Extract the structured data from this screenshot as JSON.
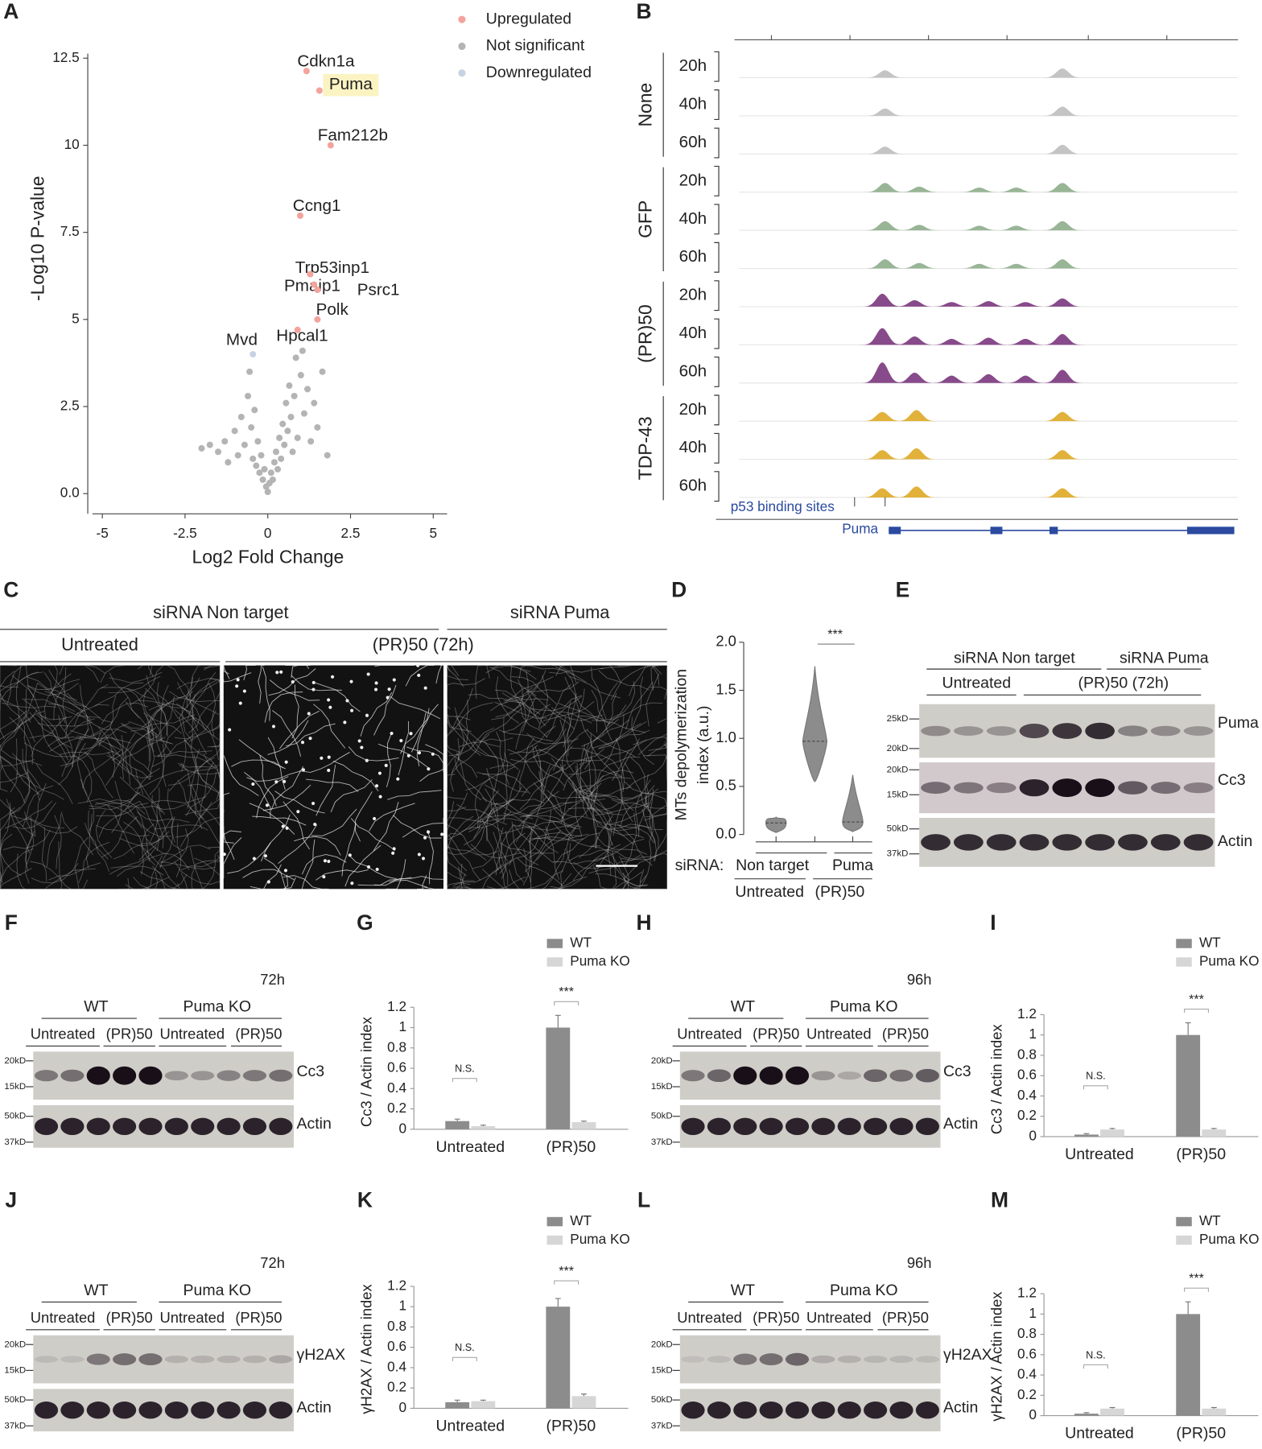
{
  "panel_labels": [
    "A",
    "B",
    "C",
    "D",
    "E",
    "F",
    "G",
    "H",
    "I",
    "J",
    "K",
    "L",
    "M"
  ],
  "chart_data": [
    {
      "type": "scatter",
      "xlabel": "Log2 Fold Change",
      "ylabel": "-Log10 P-value",
      "xlim": [
        -5.3,
        5.42
      ],
      "ylim": [
        -0.58,
        12.63
      ],
      "xticks": [
        -5,
        -2.5,
        0,
        2.5,
        5
      ],
      "yticks": [
        {
          "value": 0,
          "label": "0.0"
        },
        2.5,
        5,
        7.5,
        10,
        12.5
      ],
      "series": [
        {
          "name": "Upregulated",
          "color": "#f2a49c",
          "x": [
            1.17,
            1.56,
            1.9,
            0.98,
            1.28,
            1.4,
            1.5,
            1.5,
            0.9
          ],
          "values": [
            12.13,
            11.57,
            10.0,
            7.98,
            6.3,
            6.0,
            5.85,
            5.0,
            4.7
          ],
          "point_labels": [
            "Cdkn1a",
            "Puma",
            "Fam212b",
            "Ccng1",
            "Trp53inp1",
            "Pmaip1",
            "Psrc1",
            "Polk",
            "Hpcal1"
          ]
        },
        {
          "name": "Not significant",
          "color": "#b4b4b4",
          "x": [
            -1.5,
            -1.3,
            -1.2,
            -1.0,
            -0.9,
            -0.8,
            -0.7,
            -0.6,
            -0.55,
            -0.5,
            -0.45,
            -0.4,
            -0.35,
            -0.3,
            -0.25,
            -0.2,
            -0.15,
            -0.1,
            -0.05,
            0,
            0.05,
            0.1,
            0.15,
            0.2,
            0.25,
            0.3,
            0.35,
            0.4,
            0.45,
            0.5,
            0.55,
            0.6,
            0.65,
            0.7,
            0.75,
            0.8,
            0.85,
            0.9,
            1.0,
            1.05,
            1.1,
            1.2,
            1.3,
            1.4,
            1.5,
            1.65,
            1.8,
            -1.75,
            -2.0
          ],
          "values": [
            1.2,
            1.5,
            0.9,
            1.8,
            1.1,
            2.2,
            1.4,
            2.8,
            3.5,
            1.9,
            1.0,
            2.4,
            0.8,
            1.5,
            0.6,
            1.1,
            0.4,
            0.7,
            0.2,
            0.05,
            0.3,
            0.6,
            0.4,
            0.9,
            1.2,
            0.7,
            1.6,
            1.0,
            2.0,
            1.4,
            2.6,
            1.8,
            3.1,
            2.2,
            1.2,
            2.8,
            3.9,
            1.6,
            3.4,
            4.1,
            2.3,
            3.0,
            1.5,
            2.6,
            1.9,
            3.5,
            1.1,
            1.4,
            1.3
          ]
        },
        {
          "name": "Downregulated",
          "color": "#c6d4e2",
          "x": [
            -0.45
          ],
          "values": [
            4.0
          ],
          "point_labels": [
            "Mvd"
          ]
        }
      ]
    },
    {
      "type": "violin",
      "ylabel": [
        "MTs depolymerization",
        "index (a.u.)"
      ],
      "ylim": [
        0,
        2.0
      ],
      "yticks": [
        {
          "value": 0,
          "label": "0.0"
        },
        {
          "value": 0.5,
          "label": "0.5"
        },
        {
          "value": 1,
          "label": "1.0"
        },
        {
          "value": 1.5,
          "label": "1.5"
        },
        {
          "value": 2,
          "label": "2.0"
        }
      ],
      "categories": [
        null,
        null,
        null
      ],
      "color": "#8c8c8c",
      "medians": [
        0.12,
        0.97,
        0.13
      ],
      "mins": [
        0.02,
        0.55,
        0.03
      ],
      "maxs": [
        0.18,
        1.75,
        0.62
      ],
      "x_labels": [
        "siRNA:",
        "Non target",
        "Puma",
        "Untreated",
        "(PR)50"
      ],
      "annotations": [
        "***"
      ]
    },
    {
      "type": "bar",
      "ylabel": "Cc3 / Actin index",
      "categories": [
        "Untreated",
        "(PR)50"
      ],
      "ylim": [
        0,
        1.2
      ],
      "yticks": [
        0,
        0.2,
        0.4,
        0.6,
        0.8,
        1,
        1.2
      ],
      "series": [
        {
          "name": "WT",
          "color": "#8c8c8c",
          "values": [
            0.08,
            1.0
          ],
          "errors": [
            0.02,
            0.12
          ]
        },
        {
          "name": "Puma KO",
          "color": "#d6d6d6",
          "values": [
            0.03,
            0.07
          ],
          "errors": [
            0.01,
            0.01
          ]
        }
      ],
      "annotations": [
        "N.S.",
        "***"
      ]
    },
    {
      "type": "bar",
      "ylabel": "Cc3 / Actin index",
      "categories": [
        "Untreated",
        "(PR)50"
      ],
      "ylim": [
        0,
        1.2
      ],
      "yticks": [
        0,
        0.2,
        0.4,
        0.6,
        0.8,
        1,
        1.2
      ],
      "series": [
        {
          "name": "WT",
          "color": "#8c8c8c",
          "values": [
            0.02,
            1.0
          ],
          "errors": [
            0.01,
            0.12
          ]
        },
        {
          "name": "Puma KO",
          "color": "#d6d6d6",
          "values": [
            0.07,
            0.07
          ],
          "errors": [
            0.01,
            0.01
          ]
        }
      ],
      "annotations": [
        "N.S.",
        "***"
      ]
    },
    {
      "type": "bar",
      "ylabel": "γH2AX / Actin index",
      "categories": [
        "Untreated",
        "(PR)50"
      ],
      "ylim": [
        0,
        1.2
      ],
      "yticks": [
        0,
        0.2,
        0.4,
        0.6,
        0.8,
        1,
        1.2
      ],
      "series": [
        {
          "name": "WT",
          "color": "#8c8c8c",
          "values": [
            0.06,
            1.0
          ],
          "errors": [
            0.02,
            0.08
          ]
        },
        {
          "name": "Puma KO",
          "color": "#d6d6d6",
          "values": [
            0.07,
            0.12
          ],
          "errors": [
            0.01,
            0.02
          ]
        }
      ],
      "annotations": [
        "N.S.",
        "***"
      ]
    },
    {
      "type": "bar",
      "ylabel": "γH2AX / Actin index",
      "categories": [
        "Untreated",
        "(PR)50"
      ],
      "ylim": [
        0,
        1.2
      ],
      "yticks": [
        0,
        0.2,
        0.4,
        0.6,
        0.8,
        1,
        1.2
      ],
      "series": [
        {
          "name": "WT",
          "color": "#8c8c8c",
          "values": [
            0.02,
            1.0
          ],
          "errors": [
            0.01,
            0.12
          ]
        },
        {
          "name": "Puma KO",
          "color": "#d6d6d6",
          "values": [
            0.07,
            0.07
          ],
          "errors": [
            0.01,
            0.01
          ]
        }
      ],
      "annotations": [
        "N.S.",
        "***"
      ]
    }
  ],
  "tracks": {
    "groups": [
      "None",
      "GFP",
      "(PR)50",
      "TDP-43"
    ],
    "times": [
      "20h",
      "40h",
      "60h"
    ],
    "binding_label": "p53 binding sites",
    "gene": "Puma"
  },
  "microscopy": {
    "headers": [
      "siRNA Non target",
      "siRNA Puma"
    ],
    "conditions": [
      "Untreated",
      "(PR)50 (72h)"
    ]
  },
  "blot_E": {
    "headers": [
      "siRNA Non target",
      "siRNA Puma"
    ],
    "conditions": [
      "Untreated",
      "(PR)50 (72h)"
    ],
    "markers": [
      "25kD",
      "20kD",
      "20kD",
      "15kD",
      "50kD",
      "37kD"
    ],
    "proteins": [
      "Puma",
      "Cc3",
      "Actin"
    ]
  },
  "blot_F": {
    "time": "72h",
    "genotypes": [
      "WT",
      "Puma KO"
    ],
    "conditions": [
      "Untreated",
      "(PR)50",
      "Untreated",
      "(PR)50"
    ],
    "markers": [
      "20kD",
      "15kD",
      "50kD",
      "37kD"
    ],
    "proteins": [
      "Cc3",
      "Actin"
    ]
  },
  "blot_H": {
    "time": "96h",
    "genotypes": [
      "WT",
      "Puma KO"
    ],
    "conditions": [
      "Untreated",
      "(PR)50",
      "Untreated",
      "(PR)50"
    ],
    "markers": [
      "20kD",
      "15kD",
      "50kD",
      "37kD"
    ],
    "proteins": [
      "Cc3",
      "Actin"
    ]
  },
  "blot_J": {
    "time": "72h",
    "genotypes": [
      "WT",
      "Puma KO"
    ],
    "conditions": [
      "Untreated",
      "(PR)50",
      "Untreated",
      "(PR)50"
    ],
    "markers": [
      "20kD",
      "15kD",
      "50kD",
      "37kD"
    ],
    "proteins": [
      "γH2AX",
      "Actin"
    ]
  },
  "blot_L": {
    "time": "96h",
    "genotypes": [
      "WT",
      "Puma KO"
    ],
    "conditions": [
      "Untreated",
      "(PR)50",
      "Untreated",
      "(PR)50"
    ],
    "markers": [
      "20kD",
      "15kD",
      "50kD",
      "37kD"
    ],
    "proteins": [
      "γH2AX",
      "Actin"
    ]
  }
}
